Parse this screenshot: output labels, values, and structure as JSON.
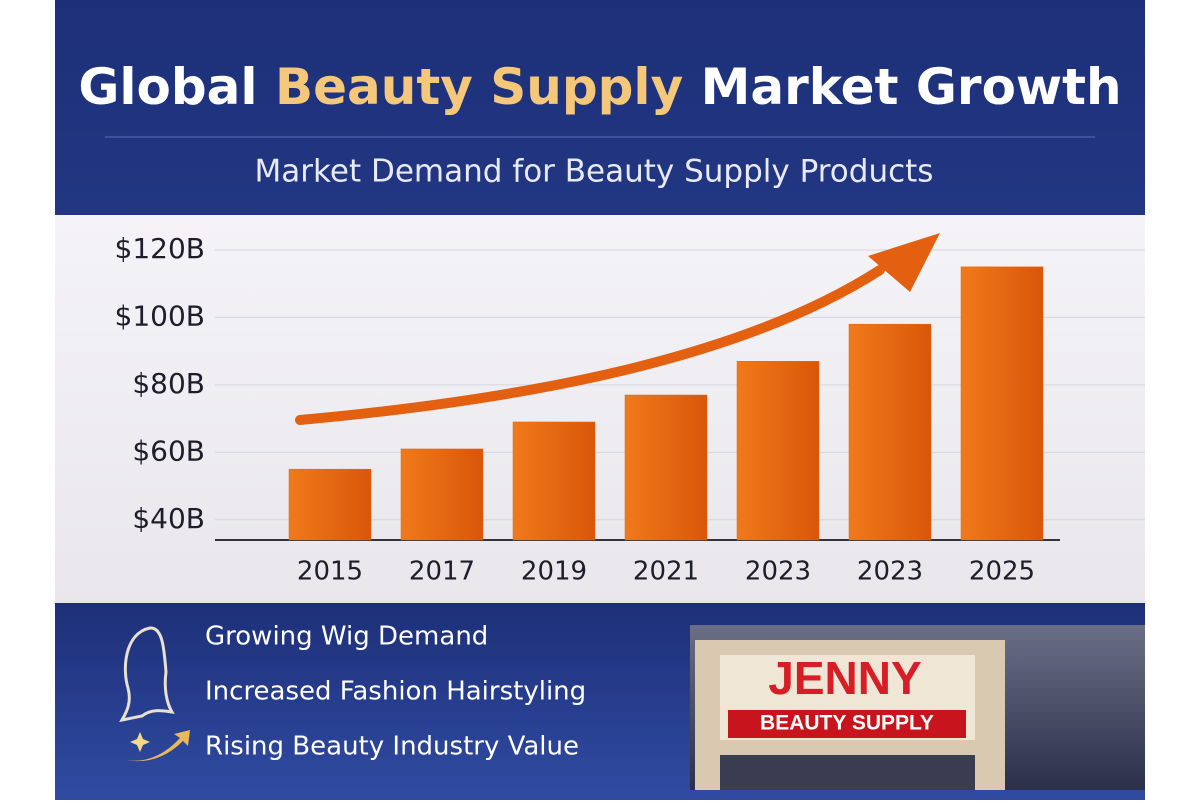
{
  "chart_data": {
    "type": "bar",
    "title_parts": [
      "Global",
      "Beauty Supply",
      "Market Growth"
    ],
    "subtitle": "Market Demand for Beauty Supply Products",
    "categories": [
      "2015",
      "2017",
      "2019",
      "2021",
      "2023",
      "2023",
      "2025"
    ],
    "values": [
      55,
      61,
      69,
      77,
      87,
      98,
      115
    ],
    "color": "#e8650f",
    "ylim": [
      34,
      124
    ],
    "yticks": [
      {
        "value": 40,
        "label": "$40B"
      },
      {
        "value": 60,
        "label": "$60B"
      },
      {
        "value": 80,
        "label": "$80B"
      },
      {
        "value": 100,
        "label": "$100B"
      },
      {
        "value": 120,
        "label": "$120B"
      }
    ],
    "grid": true
  },
  "highlights": [
    "Growing Wig Demand",
    "Increased Fashion Hairstyling",
    "Rising Beauty Industry Value"
  ],
  "store_sign": {
    "name": "JENNY",
    "tagline": "BEAUTY SUPPLY"
  }
}
